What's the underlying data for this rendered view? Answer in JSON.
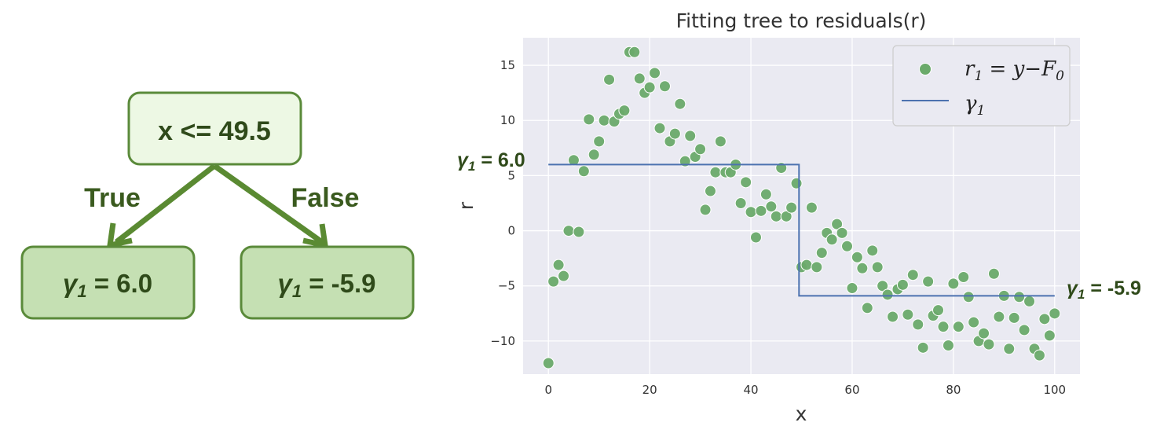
{
  "tree": {
    "root_label": "x <= 49.5",
    "true_label": "True",
    "false_label": "False",
    "left_leaf": {
      "sym": "γ",
      "sub": "1",
      "rest": " = 6.0"
    },
    "right_leaf": {
      "sym": "γ",
      "sub": "1",
      "rest": " = -5.9"
    },
    "colors": {
      "root_fill": "#edf8e4",
      "leaf_fill": "#c5e0b3",
      "border": "#5a8a3a",
      "arrow": "#5a8a32"
    }
  },
  "annotations": {
    "left": {
      "sym": "γ",
      "sub": "1",
      "rest": " = 6.0"
    },
    "right": {
      "sym": "γ",
      "sub": "1",
      "rest": " = -5.9"
    }
  },
  "chart_data": {
    "type": "scatter",
    "title": "Fitting tree to residuals(r)",
    "xlabel": "x",
    "ylabel": "r",
    "xlim": [
      -5,
      105
    ],
    "ylim": [
      -13,
      17.5
    ],
    "xticks": [
      0,
      20,
      40,
      60,
      80,
      100
    ],
    "yticks": [
      -10,
      -5,
      0,
      5,
      10,
      15
    ],
    "grid": true,
    "legend_position": "top-right",
    "colors": {
      "background": "#eaeaf2",
      "points": "#6aaa6a",
      "line": "#4c72b0"
    },
    "series": [
      {
        "name": "r1 = y−F0",
        "legend": {
          "base": "r",
          "sub": "1",
          "mid": " = y−",
          "base2": "F",
          "sub2": "0"
        },
        "kind": "scatter",
        "points": [
          [
            0,
            -12
          ],
          [
            1,
            -4.6
          ],
          [
            2,
            -3.1
          ],
          [
            3,
            -4.1
          ],
          [
            4,
            0
          ],
          [
            5,
            6.4
          ],
          [
            6,
            -0.1
          ],
          [
            7,
            5.4
          ],
          [
            8,
            10.1
          ],
          [
            9,
            6.9
          ],
          [
            10,
            8.1
          ],
          [
            11,
            10
          ],
          [
            12,
            13.7
          ],
          [
            13,
            9.9
          ],
          [
            14,
            10.6
          ],
          [
            15,
            10.9
          ],
          [
            16,
            16.2
          ],
          [
            17,
            16.2
          ],
          [
            18,
            13.8
          ],
          [
            19,
            12.5
          ],
          [
            20,
            13
          ],
          [
            21,
            14.3
          ],
          [
            22,
            9.3
          ],
          [
            23,
            13.1
          ],
          [
            24,
            8.1
          ],
          [
            25,
            8.8
          ],
          [
            26,
            11.5
          ],
          [
            27,
            6.3
          ],
          [
            28,
            8.6
          ],
          [
            29,
            6.7
          ],
          [
            30,
            7.4
          ],
          [
            31,
            1.9
          ],
          [
            32,
            3.6
          ],
          [
            33,
            5.3
          ],
          [
            34,
            8.1
          ],
          [
            35,
            5.3
          ],
          [
            36,
            5.3
          ],
          [
            37,
            6
          ],
          [
            38,
            2.5
          ],
          [
            39,
            4.4
          ],
          [
            40,
            1.7
          ],
          [
            41,
            -0.6
          ],
          [
            42,
            1.8
          ],
          [
            43,
            3.3
          ],
          [
            44,
            2.2
          ],
          [
            45,
            1.3
          ],
          [
            46,
            5.7
          ],
          [
            47,
            1.3
          ],
          [
            48,
            2.1
          ],
          [
            49,
            4.3
          ],
          [
            50,
            -3.3
          ],
          [
            51,
            -3.1
          ],
          [
            52,
            2.1
          ],
          [
            53,
            -3.3
          ],
          [
            54,
            -2
          ],
          [
            55,
            -0.2
          ],
          [
            56,
            -0.8
          ],
          [
            57,
            0.6
          ],
          [
            58,
            -0.2
          ],
          [
            59,
            -1.4
          ],
          [
            60,
            -5.2
          ],
          [
            61,
            -2.4
          ],
          [
            62,
            -3.4
          ],
          [
            63,
            -7
          ],
          [
            64,
            -1.8
          ],
          [
            65,
            -3.3
          ],
          [
            66,
            -5
          ],
          [
            67,
            -5.8
          ],
          [
            68,
            -7.8
          ],
          [
            69,
            -5.3
          ],
          [
            70,
            -4.9
          ],
          [
            71,
            -7.6
          ],
          [
            72,
            -4
          ],
          [
            73,
            -8.5
          ],
          [
            74,
            -10.6
          ],
          [
            75,
            -4.6
          ],
          [
            76,
            -7.7
          ],
          [
            77,
            -7.2
          ],
          [
            78,
            -8.7
          ],
          [
            79,
            -10.4
          ],
          [
            80,
            -4.8
          ],
          [
            81,
            -8.7
          ],
          [
            82,
            -4.2
          ],
          [
            83,
            -6
          ],
          [
            84,
            -8.3
          ],
          [
            85,
            -10
          ],
          [
            86,
            -9.3
          ],
          [
            87,
            -10.3
          ],
          [
            88,
            -3.9
          ],
          [
            89,
            -7.8
          ],
          [
            90,
            -5.9
          ],
          [
            91,
            -10.7
          ],
          [
            92,
            -7.9
          ],
          [
            93,
            -6
          ],
          [
            94,
            -9
          ],
          [
            95,
            -6.4
          ],
          [
            96,
            -10.7
          ],
          [
            97,
            -11.3
          ],
          [
            98,
            -8
          ],
          [
            99,
            -9.5
          ],
          [
            100,
            -7.5
          ]
        ]
      },
      {
        "name": "γ1",
        "legend": {
          "base": "γ",
          "sub": "1"
        },
        "kind": "step",
        "points": [
          [
            0,
            6
          ],
          [
            49.5,
            6
          ],
          [
            49.5,
            -5.9
          ],
          [
            100,
            -5.9
          ]
        ]
      }
    ]
  }
}
